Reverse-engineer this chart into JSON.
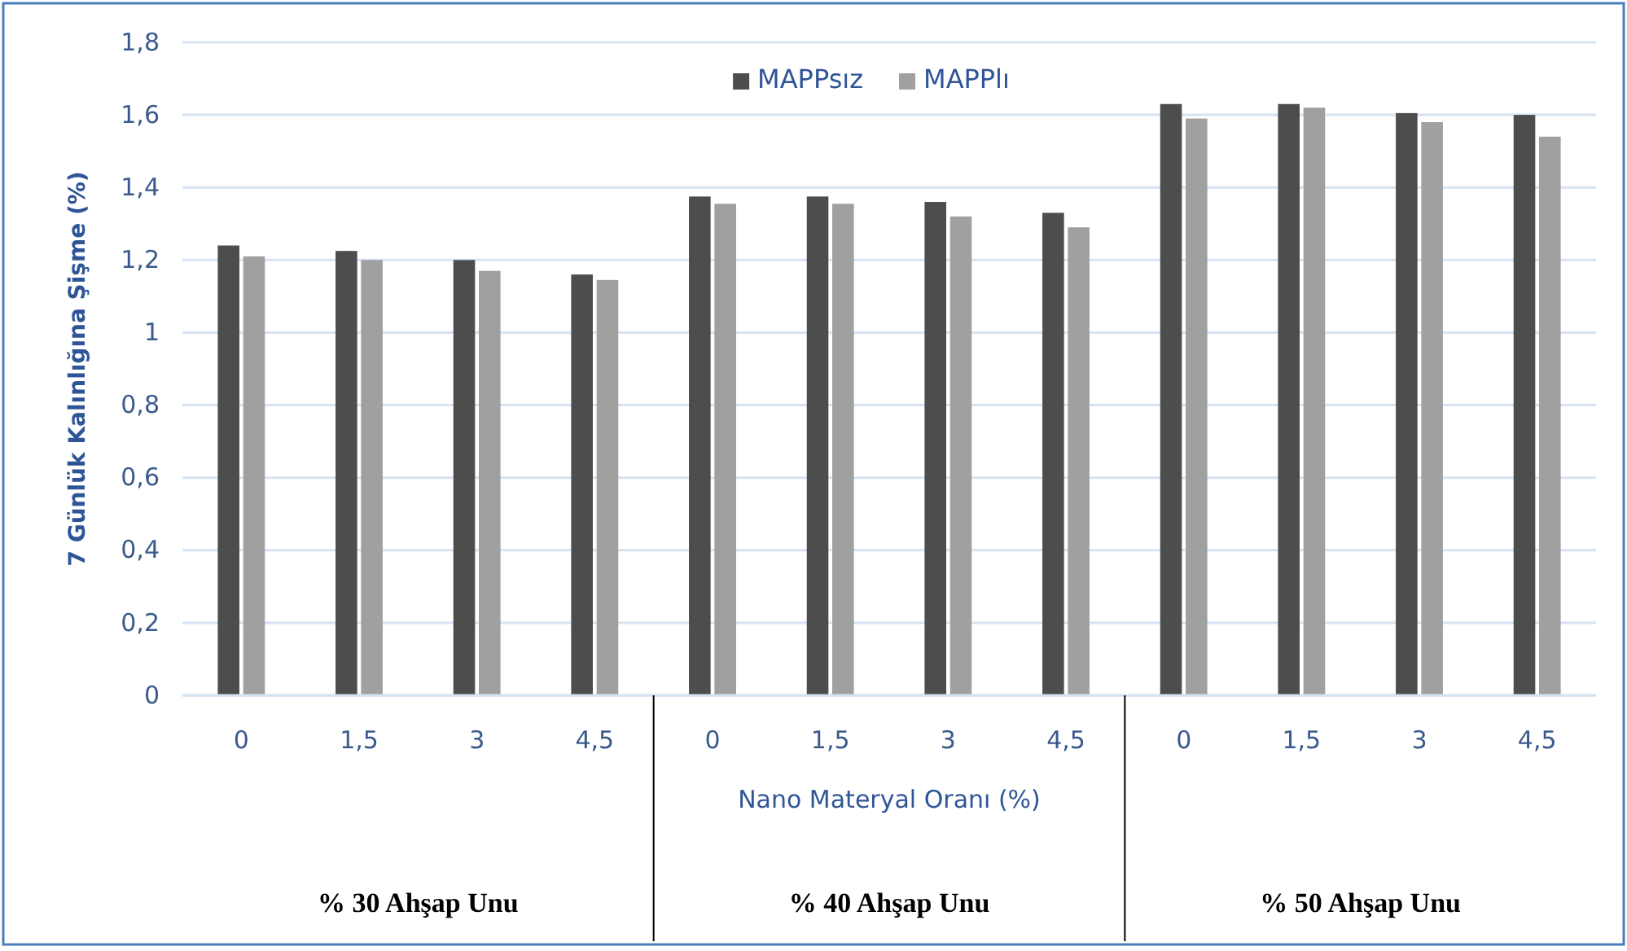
{
  "chart_data": {
    "type": "bar",
    "xlabel": "Nano Materyal Oranı (%)",
    "ylabel": "7 Günlük Kalınlığına Şişme (%)",
    "categories": [
      "0",
      "1,5",
      "3",
      "4,5",
      "0",
      "1,5",
      "3",
      "4,5",
      "0",
      "1,5",
      "3",
      "4,5"
    ],
    "series": [
      {
        "name": "MAPPsız",
        "color": "#4d4d4d",
        "values": [
          1.24,
          1.225,
          1.2,
          1.16,
          1.375,
          1.375,
          1.36,
          1.33,
          1.63,
          1.63,
          1.605,
          1.6
        ]
      },
      {
        "name": "MAPPlı",
        "color": "#a0a0a0",
        "values": [
          1.21,
          1.2,
          1.17,
          1.145,
          1.355,
          1.355,
          1.32,
          1.29,
          1.59,
          1.62,
          1.58,
          1.54
        ]
      }
    ],
    "ylim": [
      0,
      1.8
    ],
    "yticks": [
      0,
      {
        "value": 0.2,
        "label": "0,2"
      },
      {
        "value": 0.4,
        "label": "0,4"
      },
      {
        "value": 0.6,
        "label": "0,6"
      },
      {
        "value": 0.8,
        "label": "0,8"
      },
      1,
      {
        "value": 1.2,
        "label": "1,2"
      },
      {
        "value": 1.4,
        "label": "1,4"
      },
      {
        "value": 1.6,
        "label": "1,6"
      },
      {
        "value": 1.8,
        "label": "1,8"
      }
    ],
    "grid": "y",
    "legend": "top",
    "annotations": [
      "% 30 Ahşap Unu",
      "% 40 Ahşap Unu",
      "% 50 Ahşap Unu"
    ]
  }
}
